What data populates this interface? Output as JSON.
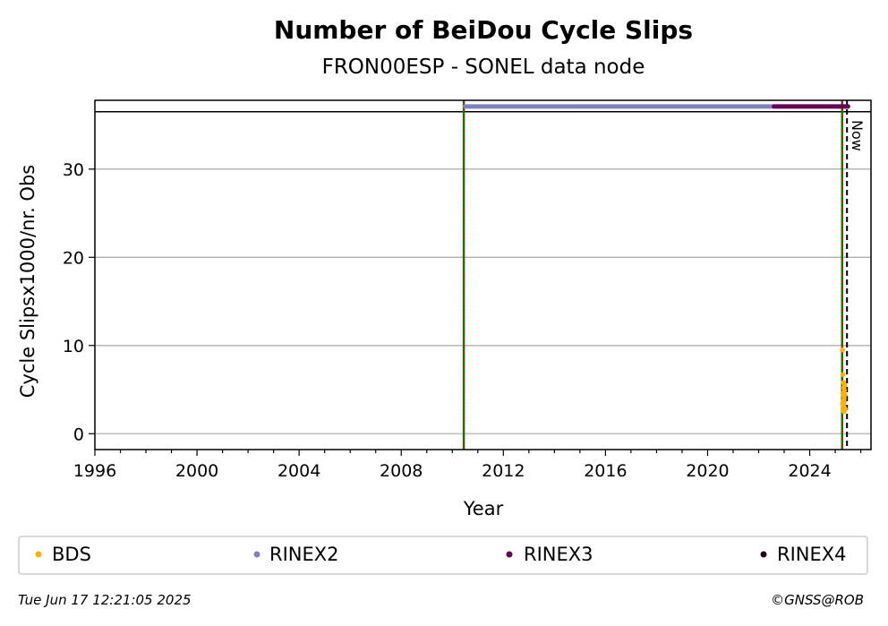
{
  "chart_data": {
    "type": "scatter",
    "title": "Number of BeiDou Cycle Slips",
    "subtitle": "FRON00ESP - SONEL data node",
    "xlabel": "Year",
    "ylabel": "Cycle Slipsx1000/nr. Obs",
    "xlim": [
      1996,
      2026.4
    ],
    "ylim": [
      -1.8,
      37.8
    ],
    "x_ticks": [
      1996,
      2000,
      2004,
      2008,
      2012,
      2016,
      2020,
      2024
    ],
    "y_ticks": [
      0,
      10,
      20,
      30
    ],
    "grid": "horizontal",
    "top_band_y": 36.5,
    "now_label": "Now",
    "now_x": 2025.46,
    "vertical_markers": [
      {
        "x": 2010.45,
        "style": "green solid with red dashes"
      },
      {
        "x": 2025.27,
        "style": "green solid with red dashes"
      }
    ],
    "series": [
      {
        "name": "BDS",
        "color": "#ffb000",
        "points": [
          [
            2025.28,
            9.5
          ],
          [
            2025.3,
            6.7
          ],
          [
            2025.32,
            5.8
          ],
          [
            2025.34,
            5.2
          ],
          [
            2025.36,
            4.9
          ],
          [
            2025.3,
            4.6
          ],
          [
            2025.33,
            4.3
          ],
          [
            2025.35,
            4.0
          ],
          [
            2025.31,
            3.7
          ],
          [
            2025.29,
            3.4
          ],
          [
            2025.33,
            3.1
          ],
          [
            2025.36,
            2.9
          ],
          [
            2025.3,
            2.7
          ],
          [
            2025.34,
            2.5
          ],
          [
            2025.32,
            3.3
          ],
          [
            2025.38,
            4.4
          ],
          [
            2025.37,
            5.5
          ],
          [
            2025.35,
            3.6
          ],
          [
            2025.39,
            2.8
          ]
        ]
      },
      {
        "name": "RINEX2",
        "color": "#8080c0",
        "bar": {
          "from": 2010.5,
          "to": 2022.6,
          "y": 37.1
        }
      },
      {
        "name": "RINEX3",
        "color": "#660055",
        "bar": {
          "from": 2022.6,
          "to": 2025.5,
          "y": 37.1
        }
      },
      {
        "name": "RINEX4",
        "color": "#1a0014",
        "bar": null
      }
    ]
  },
  "legend": {
    "items": [
      {
        "label": "BDS",
        "color": "#ffb000"
      },
      {
        "label": "RINEX2",
        "color": "#8080c0"
      },
      {
        "label": "RINEX3",
        "color": "#660055"
      },
      {
        "label": "RINEX4",
        "color": "#1a0014"
      }
    ]
  },
  "footer": {
    "timestamp": "Tue Jun 17 12:21:05 2025",
    "credit": "©GNSS@ROB"
  }
}
